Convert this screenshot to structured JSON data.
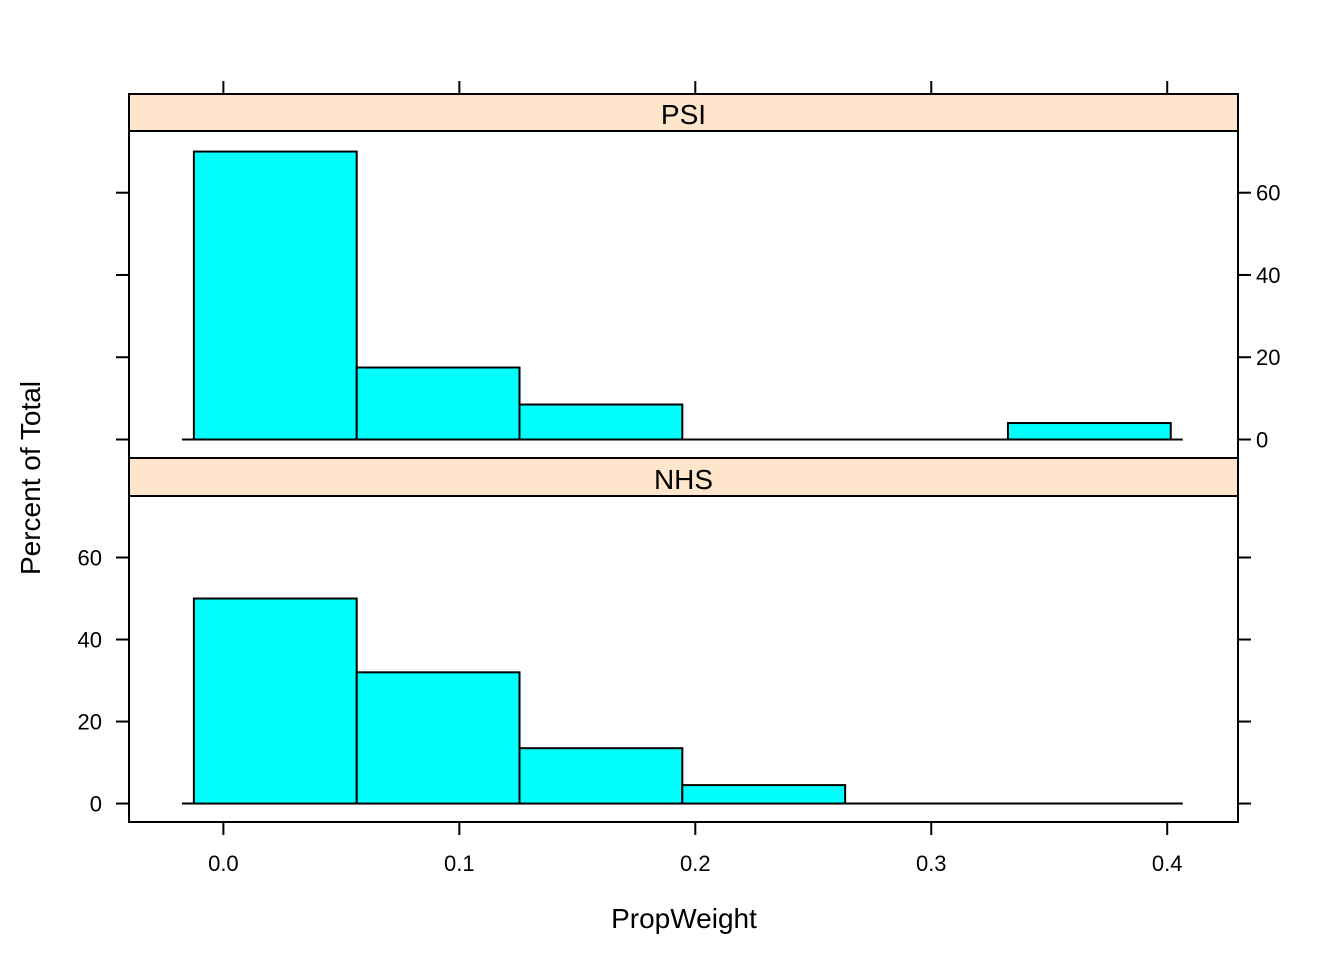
{
  "chart_data": {
    "type": "bar",
    "subtype": "histogram-lattice",
    "xlabel": "PropWeight",
    "ylabel": "Percent of Total",
    "xlim": [
      -0.04,
      0.43
    ],
    "ylim": [
      -4.5,
      75
    ],
    "x_ticks": [
      0.0,
      0.1,
      0.2,
      0.3,
      0.4
    ],
    "x_tick_labels": [
      "0.0",
      "0.1",
      "0.2",
      "0.3",
      "0.4"
    ],
    "y_ticks": [
      0,
      20,
      40,
      60
    ],
    "y_tick_labels": [
      "0",
      "20",
      "40",
      "60"
    ],
    "bin_edges": [
      -0.0125,
      0.0565,
      0.1255,
      0.1945,
      0.2635,
      0.3325,
      0.4015
    ],
    "bar_color": "#00ffff",
    "strip_color": "#ffe5cc",
    "panels": [
      {
        "name": "PSI",
        "values": [
          70,
          17.5,
          8.5,
          0,
          0,
          4
        ]
      },
      {
        "name": "NHS",
        "values": [
          50,
          32,
          13.5,
          4.5,
          0,
          0
        ]
      }
    ]
  }
}
